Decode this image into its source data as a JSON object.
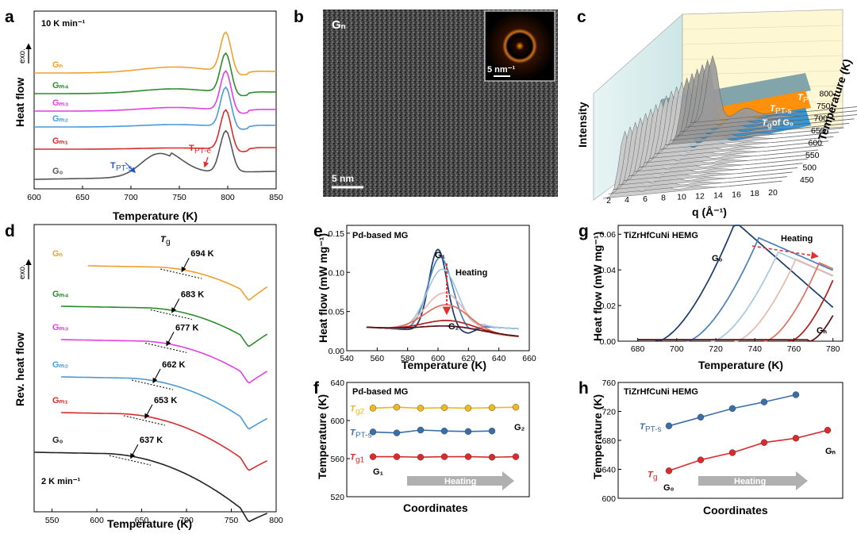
{
  "chart_data": [
    {
      "panel": "a",
      "type": "line",
      "xlabel": "Temperature (K)",
      "ylabel": "Heat flow",
      "exo_label": "exo.",
      "rate_label": "10 K min⁻¹",
      "xlim": [
        600,
        850
      ],
      "xticks": [
        "600",
        "650",
        "700",
        "750",
        "800",
        "850"
      ],
      "series": [
        {
          "name": "Gₙ",
          "color": "#f0a030",
          "offset": 5
        },
        {
          "name": "Gₘ₄",
          "color": "#2c8c2c",
          "offset": 4
        },
        {
          "name": "Gₘ₃",
          "color": "#e040e0",
          "offset": 3
        },
        {
          "name": "Gₘ₂",
          "color": "#4a9ad8",
          "offset": 2
        },
        {
          "name": "Gₘ₁",
          "color": "#d82c2c",
          "offset": 1
        },
        {
          "name": "G₀",
          "color": "#555555",
          "offset": 0
        }
      ],
      "annotations": [
        {
          "text": "T",
          "sub": "PT-s",
          "color": "#2255cc",
          "x": 705
        },
        {
          "text": "T",
          "sub": "PT-e",
          "color": "#d82c2c",
          "x": 775
        }
      ]
    },
    {
      "panel": "b",
      "type": "image",
      "title": "Gₙ",
      "scale_bar": "5 nm",
      "inset_scale": "5 nm⁻¹"
    },
    {
      "panel": "c",
      "type": "area",
      "xlabel": "q (Å⁻¹)",
      "ylabel": "Intensity",
      "zlabel": "Temperature (K)",
      "xticks": [
        "2",
        "4",
        "6",
        "8",
        "10",
        "12",
        "14",
        "16",
        "18",
        "20"
      ],
      "zticks": [
        "450",
        "500",
        "550",
        "600",
        "650",
        "700",
        "750",
        "800"
      ],
      "labels": [
        {
          "text": "T",
          "sub": "PT-e"
        },
        {
          "text": "T",
          "sub": "PT-s"
        },
        {
          "text": "T",
          "sub": "g",
          "suffix": " of G₀"
        }
      ]
    },
    {
      "panel": "d",
      "type": "line",
      "xlabel": "Temperature (K)",
      "ylabel": "Rev. heat flow",
      "exo_label": "exo.",
      "rate_label": "2 K min⁻¹",
      "tg_label": "T",
      "tg_sub": "g",
      "xlim": [
        530,
        800
      ],
      "xticks": [
        "550",
        "600",
        "650",
        "700",
        "750",
        "800"
      ],
      "series": [
        {
          "name": "Gₙ",
          "color": "#f0a030",
          "tg": "694 K"
        },
        {
          "name": "Gₘ₄",
          "color": "#2c8c2c",
          "tg": "683 K"
        },
        {
          "name": "Gₘ₃",
          "color": "#e040e0",
          "tg": "677 K"
        },
        {
          "name": "Gₘ₂",
          "color": "#4a9ad8",
          "tg": "662 K"
        },
        {
          "name": "Gₘ₁",
          "color": "#d82c2c",
          "tg": "653 K"
        },
        {
          "name": "G₀",
          "color": "#222222",
          "tg": "637 K"
        }
      ]
    },
    {
      "panel": "e",
      "type": "line",
      "title": "Pd-based MG",
      "xlabel": "Temperature (K)",
      "ylabel": "Heat flow (mW mg⁻¹)",
      "xlim": [
        540,
        660
      ],
      "ylim": [
        0,
        0.16
      ],
      "xticks": [
        "540",
        "560",
        "580",
        "600",
        "620",
        "640",
        "660"
      ],
      "yticks": [
        "0.00",
        "0.05",
        "0.10",
        "0.15"
      ],
      "arrow_label": "Heating",
      "start_label": "G₁",
      "end_label": "G₂",
      "series": [
        {
          "color": "#1a3b6e",
          "peak": 0.135
        },
        {
          "color": "#4a7fb8",
          "peak": 0.125
        },
        {
          "color": "#a8c8e0",
          "peak": 0.11
        },
        {
          "color": "#e8b8b0",
          "peak": 0.08
        },
        {
          "color": "#e07060",
          "peak": 0.065
        },
        {
          "color": "#b02020",
          "peak": 0.045
        },
        {
          "color": "#5a1010",
          "peak": 0.038
        }
      ]
    },
    {
      "panel": "f",
      "type": "scatter",
      "title": "Pd-based MG",
      "xlabel": "Coordinates",
      "ylabel": "Temperature (K)",
      "ylim": [
        520,
        640
      ],
      "yticks": [
        "520",
        "560",
        "600",
        "640"
      ],
      "arrow_label": "Heating",
      "start_label": "G₁",
      "end_label": "G₂",
      "series": [
        {
          "name": "T",
          "sub": "g2",
          "color": "#f0b820",
          "values": [
            613,
            614,
            613,
            613.5,
            613,
            613.5,
            614
          ]
        },
        {
          "name": "T",
          "sub": "PT-s",
          "color": "#3a6ea8",
          "values": [
            588,
            587,
            590,
            589,
            588.5,
            589
          ]
        },
        {
          "name": "T",
          "sub": "g1",
          "color": "#d82c2c",
          "values": [
            562,
            562,
            561.5,
            562,
            562,
            561.5,
            562
          ]
        }
      ]
    },
    {
      "panel": "g",
      "type": "line",
      "title": "TiZrHfCuNi HEMG",
      "xlabel": "Temperature (K)",
      "ylabel": "Heat flow (mW mg⁻¹)",
      "xlim": [
        670,
        785
      ],
      "ylim": [
        0,
        0.065
      ],
      "xticks": [
        "680",
        "700",
        "720",
        "740",
        "760",
        "780"
      ],
      "yticks": [
        "0.00",
        "0.02",
        "0.04",
        "0.06"
      ],
      "arrow_label": "Heating",
      "start_label": "G₀",
      "end_label": "Gₙ",
      "series": [
        {
          "color": "#1a3b6e",
          "onset": 690,
          "peak": 0.067
        },
        {
          "color": "#4a7fb8",
          "onset": 705,
          "peak": 0.058
        },
        {
          "color": "#a8c8e0",
          "onset": 718,
          "peak": 0.05
        },
        {
          "color": "#e8b8b0",
          "onset": 730,
          "peak": 0.046
        },
        {
          "color": "#e07060",
          "onset": 745,
          "peak": 0.044
        },
        {
          "color": "#b02020",
          "onset": 758,
          "peak": 0.042
        },
        {
          "color": "#5a1010",
          "onset": 768,
          "peak": 0.038
        }
      ]
    },
    {
      "panel": "h",
      "type": "scatter",
      "title": "TiZrHfCuNi HEMG",
      "xlabel": "Coordinates",
      "ylabel": "Temperature (K)",
      "ylim": [
        600,
        760
      ],
      "yticks": [
        "600",
        "640",
        "680",
        "720",
        "760"
      ],
      "arrow_label": "Heating",
      "start_label": "G₀",
      "end_label": "Gₙ",
      "series": [
        {
          "name": "T",
          "sub": "PT-s",
          "color": "#3a6ea8",
          "values": [
            700,
            712,
            724,
            733,
            743
          ]
        },
        {
          "name": "T",
          "sub": "g",
          "color": "#d82c2c",
          "values": [
            638,
            653,
            663,
            677,
            683,
            694
          ]
        }
      ]
    }
  ]
}
